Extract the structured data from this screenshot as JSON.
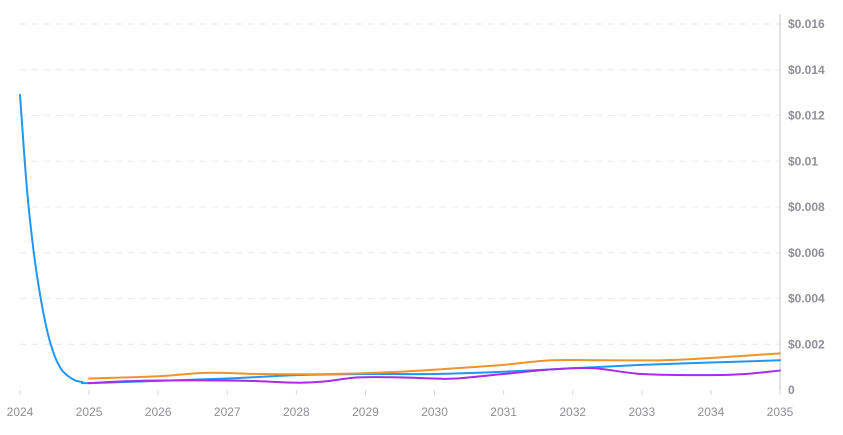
{
  "chart_data": {
    "type": "line",
    "x_ticks": [
      "2024",
      "2025",
      "2026",
      "2027",
      "2028",
      "2029",
      "2030",
      "2031",
      "2032",
      "2033",
      "2034",
      "2035"
    ],
    "y_ticks": [
      {
        "value": 0.016,
        "label": "$0.016"
      },
      {
        "value": 0.014,
        "label": "$0.014"
      },
      {
        "value": 0.012,
        "label": "$0.012"
      },
      {
        "value": 0.01,
        "label": "$0.01"
      },
      {
        "value": 0.008,
        "label": "$0.008"
      },
      {
        "value": 0.006,
        "label": "$0.006"
      },
      {
        "value": 0.004,
        "label": "$0.004"
      },
      {
        "value": 0.002,
        "label": "$0.002"
      },
      {
        "value": 0,
        "label": "0"
      }
    ],
    "xlim": [
      2024,
      2035
    ],
    "ylim": [
      0,
      0.016
    ],
    "grid": true,
    "legend": "none",
    "series": [
      {
        "color": "#2196f3",
        "points": [
          {
            "x": 2024.0,
            "y": 0.0129
          },
          {
            "x": 2024.1,
            "y": 0.0088
          },
          {
            "x": 2024.2,
            "y": 0.006
          },
          {
            "x": 2024.3,
            "y": 0.004
          },
          {
            "x": 2024.4,
            "y": 0.0025
          },
          {
            "x": 2024.5,
            "y": 0.0015
          },
          {
            "x": 2024.6,
            "y": 0.0009
          },
          {
            "x": 2024.7,
            "y": 0.0006
          },
          {
            "x": 2024.8,
            "y": 0.00042
          },
          {
            "x": 2024.9,
            "y": 0.00035
          },
          {
            "x": 2025.0,
            "y": 0.0003
          },
          {
            "x": 2026.0,
            "y": 0.0004
          },
          {
            "x": 2027.0,
            "y": 0.0005
          },
          {
            "x": 2028.0,
            "y": 0.00065
          },
          {
            "x": 2029.0,
            "y": 0.0007
          },
          {
            "x": 2030.0,
            "y": 0.0007
          },
          {
            "x": 2031.0,
            "y": 0.0008
          },
          {
            "x": 2032.0,
            "y": 0.00095
          },
          {
            "x": 2033.0,
            "y": 0.0011
          },
          {
            "x": 2034.0,
            "y": 0.0012
          },
          {
            "x": 2035.0,
            "y": 0.0013
          }
        ]
      },
      {
        "color": "#f0932b",
        "points": [
          {
            "x": 2025.0,
            "y": 0.0005
          },
          {
            "x": 2026.0,
            "y": 0.0006
          },
          {
            "x": 2026.7,
            "y": 0.00075
          },
          {
            "x": 2027.5,
            "y": 0.0007
          },
          {
            "x": 2028.5,
            "y": 0.0007
          },
          {
            "x": 2029.5,
            "y": 0.0008
          },
          {
            "x": 2030.3,
            "y": 0.00095
          },
          {
            "x": 2031.0,
            "y": 0.0011
          },
          {
            "x": 2031.7,
            "y": 0.0013
          },
          {
            "x": 2032.5,
            "y": 0.0013
          },
          {
            "x": 2033.3,
            "y": 0.0013
          },
          {
            "x": 2034.0,
            "y": 0.0014
          },
          {
            "x": 2035.0,
            "y": 0.0016
          }
        ]
      },
      {
        "color": "#a52ee6",
        "points": [
          {
            "x": 2025.0,
            "y": 0.0003
          },
          {
            "x": 2025.7,
            "y": 0.0004
          },
          {
            "x": 2026.5,
            "y": 0.00042
          },
          {
            "x": 2027.3,
            "y": 0.0004
          },
          {
            "x": 2028.0,
            "y": 0.00032
          },
          {
            "x": 2028.4,
            "y": 0.00037
          },
          {
            "x": 2028.9,
            "y": 0.00055
          },
          {
            "x": 2029.5,
            "y": 0.00055
          },
          {
            "x": 2030.0,
            "y": 0.0005
          },
          {
            "x": 2030.3,
            "y": 0.0005
          },
          {
            "x": 2031.0,
            "y": 0.0007
          },
          {
            "x": 2031.7,
            "y": 0.0009
          },
          {
            "x": 2032.3,
            "y": 0.00095
          },
          {
            "x": 2033.0,
            "y": 0.0007
          },
          {
            "x": 2034.0,
            "y": 0.00065
          },
          {
            "x": 2034.5,
            "y": 0.0007
          },
          {
            "x": 2035.0,
            "y": 0.00085
          }
        ]
      }
    ]
  }
}
